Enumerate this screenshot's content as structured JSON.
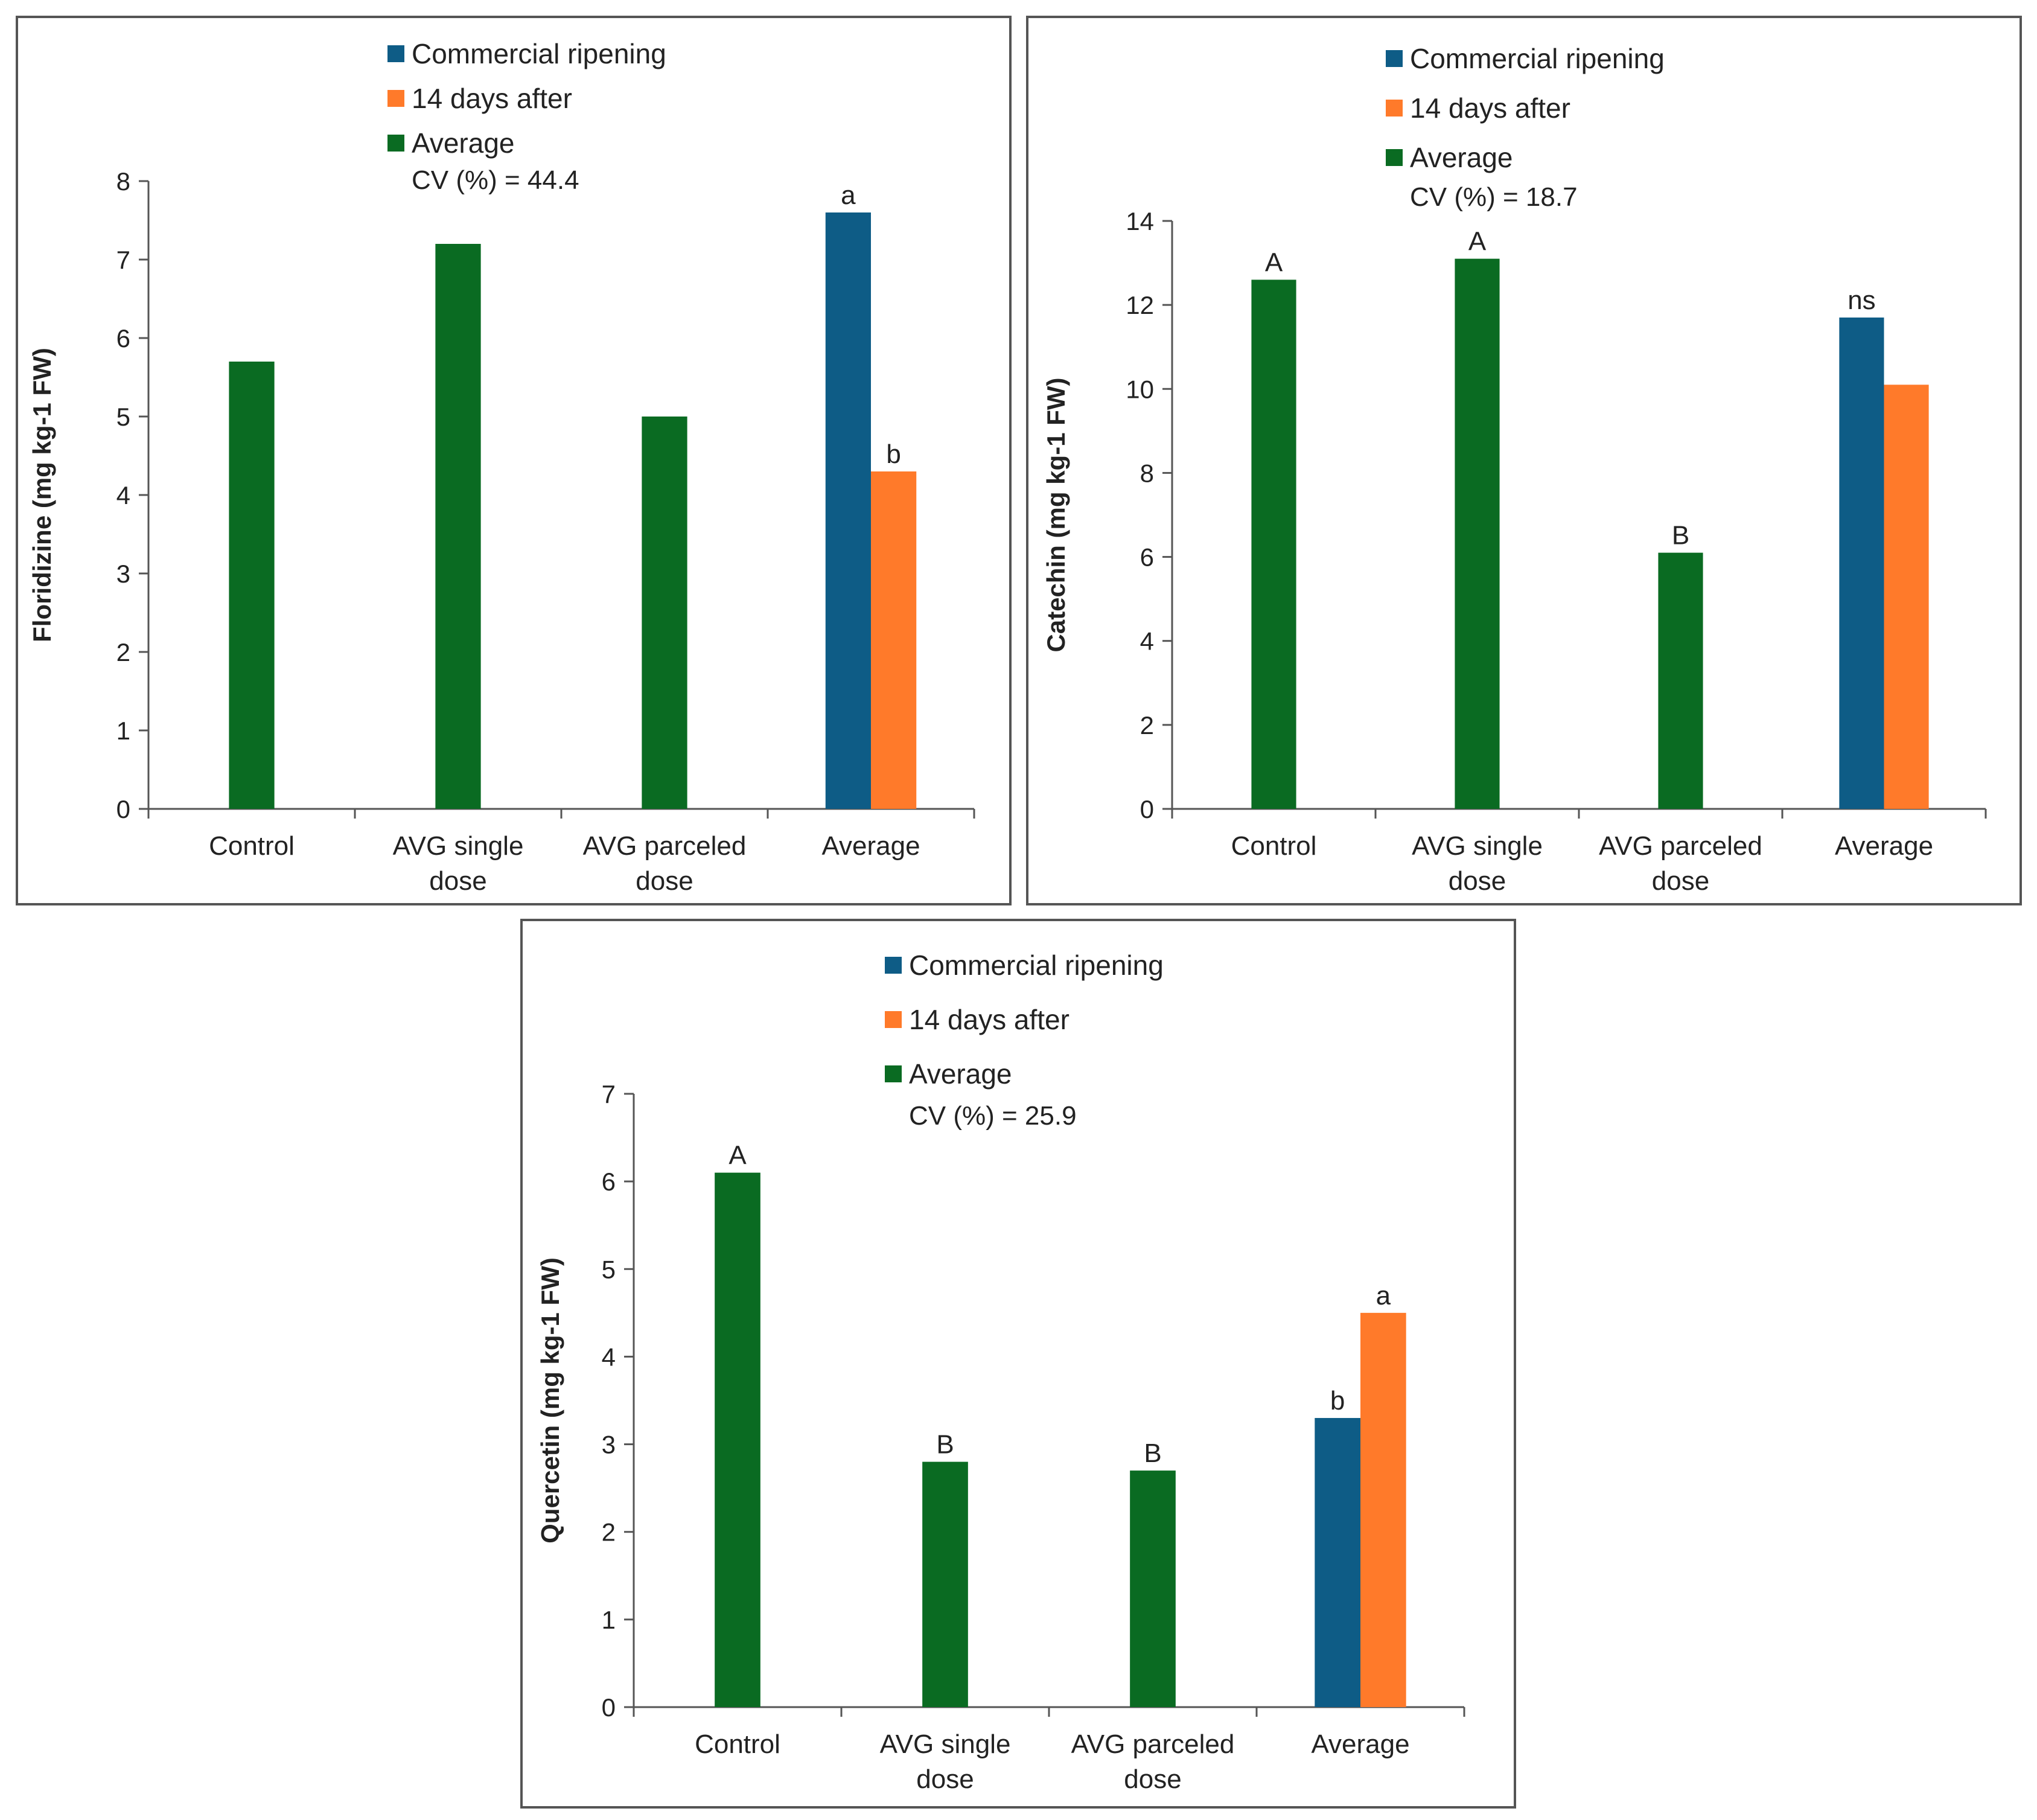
{
  "colors": {
    "commercial": "#0e5c86",
    "after": "#ff7a2a",
    "average": "#0a6b22"
  },
  "chart_data": [
    {
      "type": "bar",
      "categories": [
        "Control",
        "AVG single dose",
        "AVG parceled dose",
        "Average"
      ],
      "category_lines": [
        [
          "Control"
        ],
        [
          "AVG single",
          "dose"
        ],
        [
          "AVG parceled",
          "dose"
        ],
        [
          "Average"
        ]
      ],
      "legend": [
        "Commercial ripening",
        "14 days after",
        "Average"
      ],
      "cv_text": "CV (%) = 44.4",
      "ylabel": "Floridizine (mg kg-1 FW)",
      "ylim": [
        0,
        8
      ],
      "ytick_step": 1,
      "series": [
        {
          "name": "Commercial ripening",
          "values": [
            null,
            null,
            null,
            7.6
          ],
          "labels": [
            null,
            null,
            null,
            "a"
          ]
        },
        {
          "name": "14 days after",
          "values": [
            null,
            null,
            null,
            4.3
          ],
          "labels": [
            null,
            null,
            null,
            "b"
          ]
        },
        {
          "name": "Average",
          "values": [
            5.7,
            7.2,
            5.0,
            null
          ],
          "labels": [
            null,
            null,
            null,
            null
          ]
        }
      ]
    },
    {
      "type": "bar",
      "categories": [
        "Control",
        "AVG single dose",
        "AVG parceled dose",
        "Average"
      ],
      "category_lines": [
        [
          "Control"
        ],
        [
          "AVG single",
          "dose"
        ],
        [
          "AVG parceled",
          "dose"
        ],
        [
          "Average"
        ]
      ],
      "legend": [
        "Commercial ripening",
        "14 days after",
        "Average"
      ],
      "cv_text": "CV (%) = 18.7",
      "ylabel": "Catechin (mg kg-1 FW)",
      "ylim": [
        0,
        14
      ],
      "ytick_step": 2,
      "series": [
        {
          "name": "Commercial ripening",
          "values": [
            null,
            null,
            null,
            11.7
          ],
          "labels": [
            null,
            null,
            null,
            "ns"
          ]
        },
        {
          "name": "14 days after",
          "values": [
            null,
            null,
            null,
            10.1
          ],
          "labels": [
            null,
            null,
            null,
            null
          ]
        },
        {
          "name": "Average",
          "values": [
            12.6,
            13.1,
            6.1,
            null
          ],
          "labels": [
            "A",
            "A",
            "B",
            null
          ]
        }
      ]
    },
    {
      "type": "bar",
      "categories": [
        "Control",
        "AVG single dose",
        "AVG parceled dose",
        "Average"
      ],
      "category_lines": [
        [
          "Control"
        ],
        [
          "AVG single",
          "dose"
        ],
        [
          "AVG parceled",
          "dose"
        ],
        [
          "Average"
        ]
      ],
      "legend": [
        "Commercial ripening",
        "14 days after",
        "Average"
      ],
      "cv_text": "CV (%) = 25.9",
      "ylabel": "Quercetin (mg kg-1 FW)",
      "ylim": [
        0,
        7
      ],
      "ytick_step": 1,
      "series": [
        {
          "name": "Commercial ripening",
          "values": [
            null,
            null,
            null,
            3.3
          ],
          "labels": [
            null,
            null,
            null,
            "b"
          ]
        },
        {
          "name": "14 days after",
          "values": [
            null,
            null,
            null,
            4.5
          ],
          "labels": [
            null,
            null,
            null,
            "a"
          ]
        },
        {
          "name": "Average",
          "values": [
            6.1,
            2.8,
            2.7,
            null
          ],
          "labels": [
            "A",
            "B",
            "B",
            null
          ]
        }
      ]
    }
  ]
}
